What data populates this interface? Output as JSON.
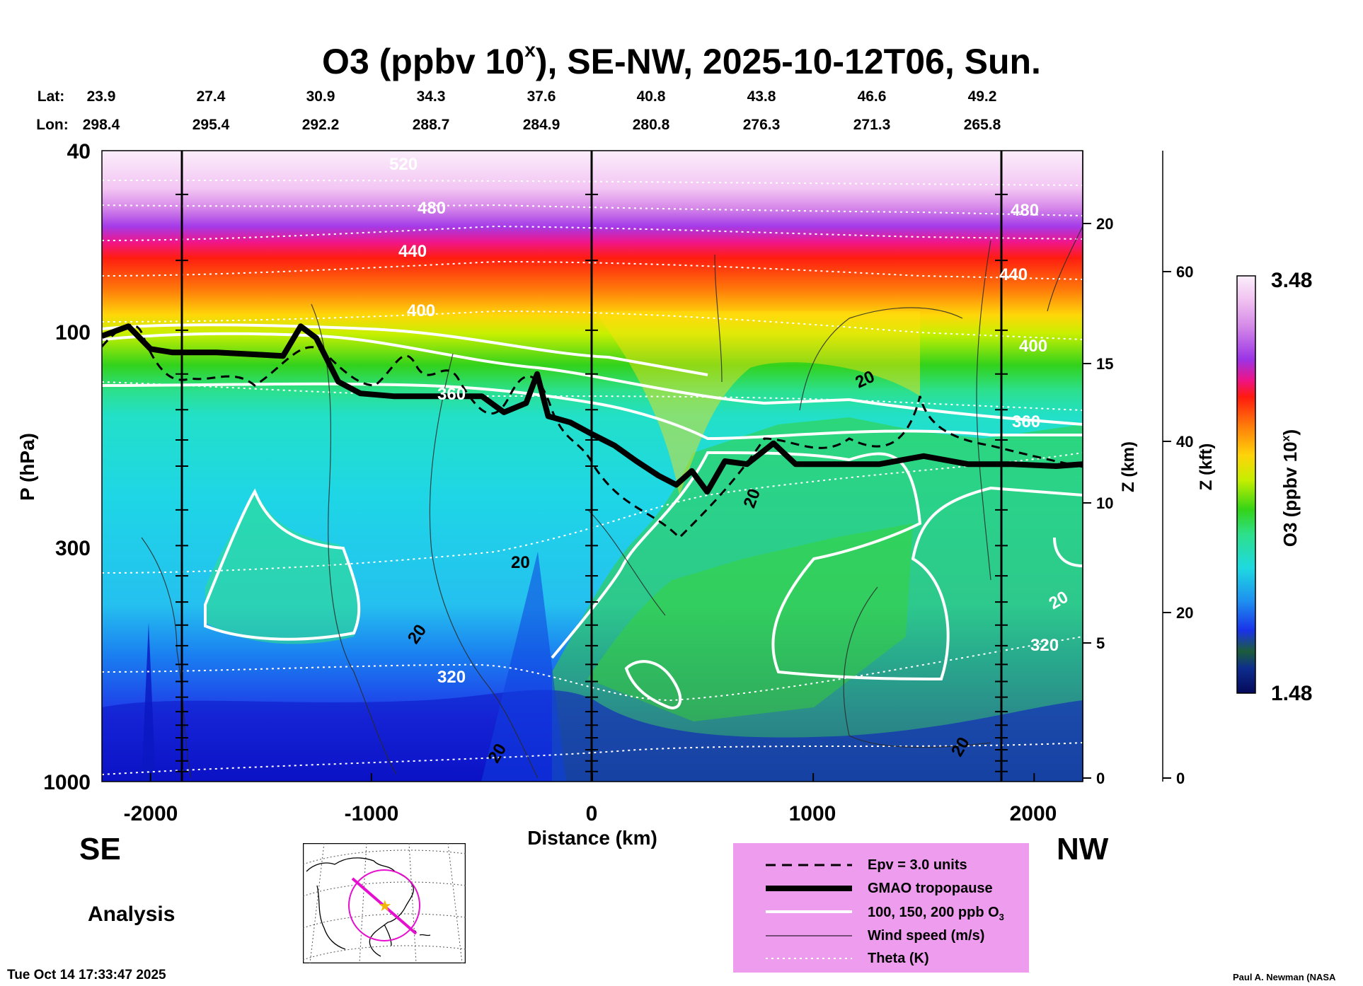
{
  "chart_data": {
    "type": "heatmap",
    "title_main": "O3 (ppbv 10",
    "title_sup": "x",
    "title_rest": "), SE-NW, 2025-10-12T06, Sun.",
    "lat_label": "Lat:",
    "lon_label": "Lon:",
    "lats": [
      "23.9",
      "27.4",
      "30.9",
      "34.3",
      "37.6",
      "40.8",
      "43.8",
      "46.6",
      "49.2"
    ],
    "lons": [
      "298.4",
      "295.4",
      "292.2",
      "288.7",
      "284.9",
      "280.8",
      "276.3",
      "271.3",
      "265.8"
    ],
    "xlabel": "Distance (km)",
    "xlim": [
      -2220,
      2220
    ],
    "x_ticks": [
      -2000,
      -1000,
      0,
      1000,
      2000
    ],
    "x_tick_labels": [
      "-2000",
      "-1000",
      "0",
      "1000",
      "2000"
    ],
    "ylabel": "P (hPa)",
    "ylim": [
      1000,
      40
    ],
    "y_ticks": [
      40,
      100,
      300,
      1000
    ],
    "y_tick_labels": [
      "40",
      "100",
      "300",
      "1000"
    ],
    "z_km_label": "Z (km)",
    "z_km_ticks": [
      0,
      5,
      10,
      15,
      20
    ],
    "z_km_tick_labels": [
      "0",
      "5",
      "10",
      "15",
      "20"
    ],
    "z_kft_label": "Z (kft)",
    "z_kft_ticks": [
      0,
      20,
      40,
      60
    ],
    "z_kft_tick_labels": [
      "0",
      "20",
      "40",
      "60"
    ],
    "colorbar_label": "O3 (ppbv 10",
    "colorbar_sup": "x",
    "colorbar_close": ")",
    "colorbar_range": [
      1.48,
      3.48
    ],
    "colorbar_min_label": "1.48",
    "colorbar_max_label": "3.48",
    "direction_left": "SE",
    "direction_right": "NW",
    "theta_levels": [
      320,
      360,
      400,
      440,
      480,
      520
    ],
    "theta_labels": [
      {
        "text": "520"
      },
      {
        "text": "480"
      },
      {
        "text": "440"
      },
      {
        "text": "400"
      },
      {
        "text": "360"
      },
      {
        "text": "320"
      },
      {
        "text": "480"
      },
      {
        "text": "440"
      },
      {
        "text": "400"
      },
      {
        "text": "360"
      },
      {
        "text": "320"
      }
    ],
    "wind_labels": [
      {
        "text": "20"
      },
      {
        "text": "20"
      },
      {
        "text": "20"
      },
      {
        "text": "20"
      },
      {
        "text": "20"
      },
      {
        "text": "20"
      },
      {
        "text": "20"
      }
    ],
    "tropopause": [
      {
        "x": -2220,
        "p": 103
      },
      {
        "x": -2100,
        "p": 98
      },
      {
        "x": -2000,
        "p": 110
      },
      {
        "x": -1900,
        "p": 112
      },
      {
        "x": -1700,
        "p": 112
      },
      {
        "x": -1400,
        "p": 114
      },
      {
        "x": -1320,
        "p": 98
      },
      {
        "x": -1250,
        "p": 104
      },
      {
        "x": -1150,
        "p": 130
      },
      {
        "x": -1050,
        "p": 138
      },
      {
        "x": -900,
        "p": 140
      },
      {
        "x": -700,
        "p": 140
      },
      {
        "x": -500,
        "p": 140
      },
      {
        "x": -400,
        "p": 152
      },
      {
        "x": -300,
        "p": 145
      },
      {
        "x": -250,
        "p": 125
      },
      {
        "x": -200,
        "p": 155
      },
      {
        "x": -100,
        "p": 160
      },
      {
        "x": 0,
        "p": 170
      },
      {
        "x": 100,
        "p": 180
      },
      {
        "x": 200,
        "p": 195
      },
      {
        "x": 300,
        "p": 210
      },
      {
        "x": 380,
        "p": 220
      },
      {
        "x": 450,
        "p": 205
      },
      {
        "x": 520,
        "p": 228
      },
      {
        "x": 600,
        "p": 195
      },
      {
        "x": 700,
        "p": 198
      },
      {
        "x": 820,
        "p": 178
      },
      {
        "x": 920,
        "p": 198
      },
      {
        "x": 1100,
        "p": 198
      },
      {
        "x": 1300,
        "p": 198
      },
      {
        "x": 1500,
        "p": 190
      },
      {
        "x": 1700,
        "p": 198
      },
      {
        "x": 1900,
        "p": 198
      },
      {
        "x": 2100,
        "p": 200
      },
      {
        "x": 2220,
        "p": 198
      }
    ],
    "legend": [
      {
        "label": "Epv = 3.0 units"
      },
      {
        "label": "GMAO tropopause"
      },
      {
        "label": "100, 150, 200 ppb O",
        "sub": "3"
      },
      {
        "label": "Wind speed (m/s)"
      },
      {
        "label": "Theta (K)"
      }
    ]
  },
  "analysis_label": "Analysis",
  "timestamp": "Tue Oct 14 17:33:47 2025",
  "credit": "Paul A. Newman (NASA",
  "colors": {
    "theta": "#ffffff",
    "tropopause": "#000000",
    "legend_bg": "#ee9cee",
    "map_track": "#e60fcf",
    "map_center": "#f2b705"
  }
}
